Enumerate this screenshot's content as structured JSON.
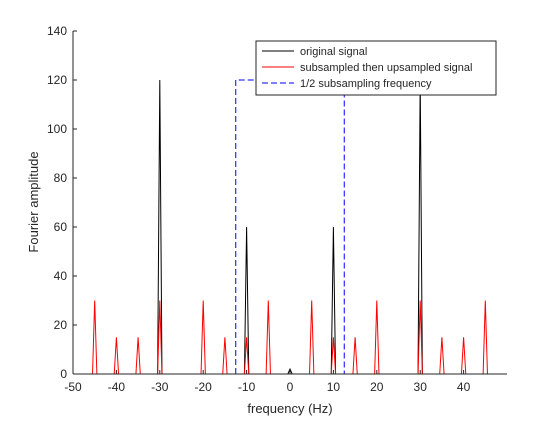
{
  "chart_data": {
    "type": "line",
    "title": "",
    "xlabel": "frequency (Hz)",
    "ylabel": "Fourier amplitude",
    "xlim": [
      -50,
      50
    ],
    "ylim": [
      0,
      140
    ],
    "xticks": [
      -50,
      -40,
      -30,
      -20,
      -10,
      0,
      10,
      20,
      30,
      40
    ],
    "yticks": [
      0,
      20,
      40,
      60,
      80,
      100,
      120,
      140
    ],
    "grid": false,
    "legend_position": "top-right",
    "series": [
      {
        "name": "original signal",
        "color": "#000000",
        "style": "solid",
        "x": [
          -50,
          -30.5,
          -30,
          -29.5,
          -10.5,
          -10,
          -9.5,
          -0.5,
          0,
          0.5,
          9.5,
          10,
          10.5,
          29.5,
          30,
          30.5,
          50
        ],
        "y": [
          0,
          0,
          120,
          0,
          0,
          60,
          0,
          0,
          2,
          0,
          0,
          60,
          0,
          0,
          120,
          0,
          0
        ]
      },
      {
        "name": "subsampled then upsampled signal",
        "color": "#ff0000",
        "style": "solid",
        "x": [
          -50,
          -45.5,
          -45,
          -44.5,
          -40.5,
          -40,
          -39.5,
          -35.5,
          -35,
          -34.5,
          -30.5,
          -30,
          -29.5,
          -20.5,
          -20,
          -19.5,
          -15.5,
          -15,
          -14.5,
          -10.5,
          -10,
          -9.5,
          -5.5,
          -5,
          -4.5,
          4.5,
          5,
          5.5,
          9.5,
          10,
          10.5,
          14.5,
          15,
          15.5,
          19.5,
          20,
          20.5,
          29.5,
          30,
          30.5,
          34.5,
          35,
          35.5,
          39.5,
          40,
          40.5,
          44.5,
          45,
          45.5,
          50
        ],
        "y": [
          0,
          0,
          30,
          0,
          0,
          15,
          0,
          0,
          15,
          0,
          0,
          30,
          0,
          0,
          30,
          0,
          0,
          15,
          0,
          0,
          15,
          0,
          0,
          30,
          0,
          0,
          30,
          0,
          0,
          15,
          0,
          0,
          15,
          0,
          0,
          30,
          0,
          0,
          30,
          0,
          0,
          15,
          0,
          0,
          15,
          0,
          0,
          30,
          0,
          0
        ]
      },
      {
        "name": "1/2 subsampling frequency",
        "color": "#0000ff",
        "style": "dashed",
        "x": [
          -12.5,
          -12.5,
          12.5,
          12.5
        ],
        "y": [
          0,
          120,
          120,
          0
        ]
      }
    ]
  }
}
